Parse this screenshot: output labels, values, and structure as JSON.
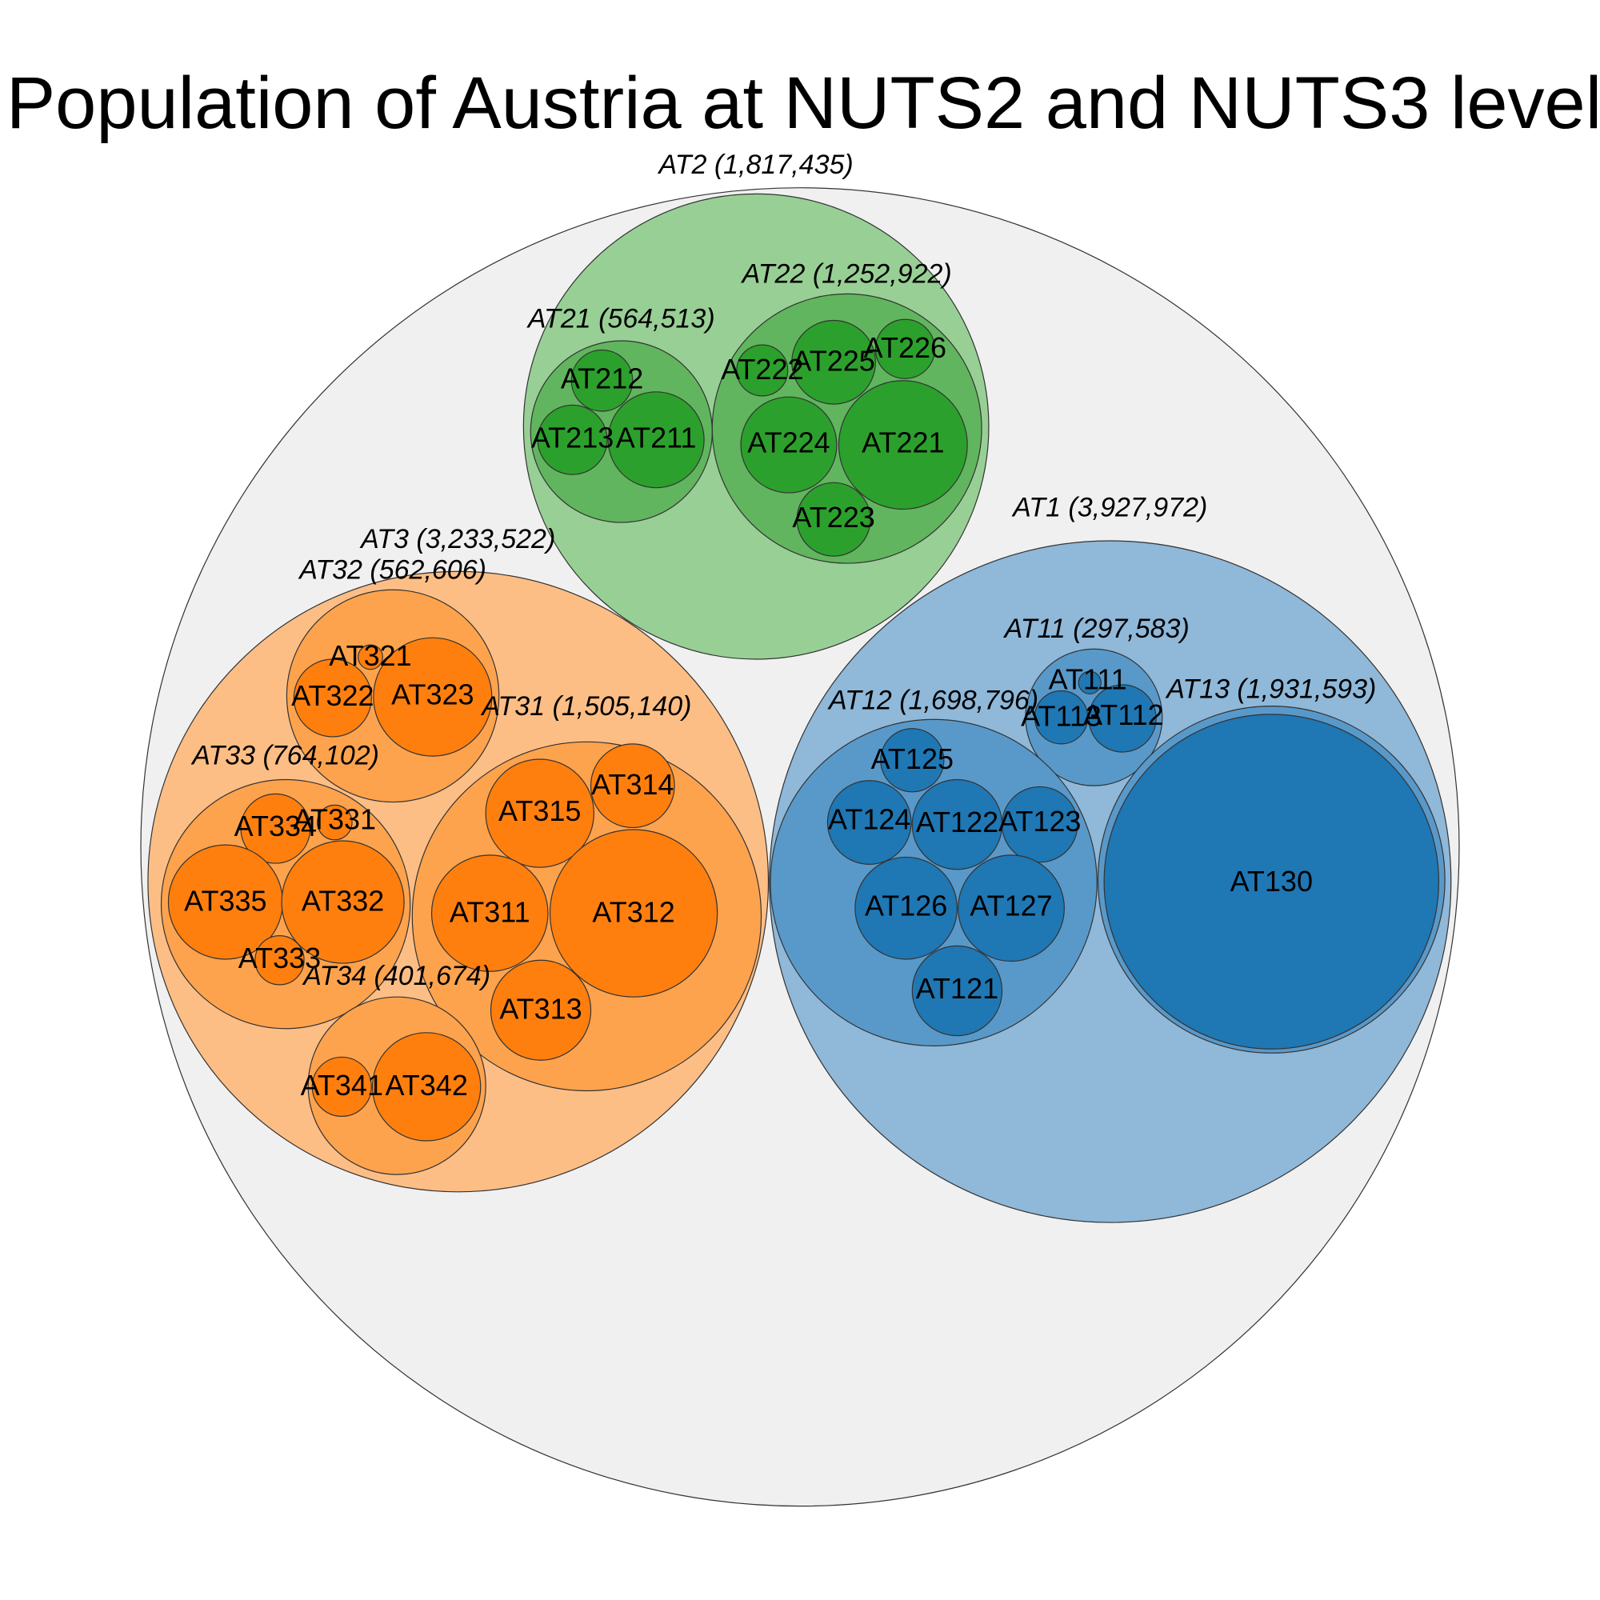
{
  "chart_data": {
    "type": "circle-packing",
    "title": "Population of Austria at NUTS2 and NUTS3 level",
    "colors": {
      "root": "#f0f0f0",
      "AT1": [
        "#8fb8d9",
        "#5999c9",
        "#1f77b4"
      ],
      "AT2": [
        "#98cf95",
        "#61b55e",
        "#2ca02c"
      ],
      "AT3": [
        "#fdbe86",
        "#fea34d",
        "#ff7f0e"
      ]
    },
    "nuts1": [
      {
        "id": "AT1",
        "label": "AT1 (3,927,972)",
        "value": 3927972,
        "nuts2": [
          {
            "id": "AT11",
            "label": "AT11 (297,583)",
            "value": 297583,
            "nuts3": [
              "AT111",
              "AT113",
              "AT112"
            ]
          },
          {
            "id": "AT12",
            "label": "AT12 (1,698,796)",
            "value": 1698796,
            "nuts3": [
              "AT125",
              "AT124",
              "AT122",
              "AT123",
              "AT126",
              "AT127",
              "AT121"
            ]
          },
          {
            "id": "AT13",
            "label": "AT13 (1,931,593)",
            "value": 1931593,
            "nuts3": [
              "AT130"
            ]
          }
        ]
      },
      {
        "id": "AT2",
        "label": "AT2 (1,817,435)",
        "value": 1817435,
        "nuts2": [
          {
            "id": "AT21",
            "label": "AT21 (564,513)",
            "value": 564513,
            "nuts3": [
              "AT212",
              "AT213",
              "AT211"
            ]
          },
          {
            "id": "AT22",
            "label": "AT22 (1,252,922)",
            "value": 1252922,
            "nuts3": [
              "AT222",
              "AT225",
              "AT226",
              "AT224",
              "AT221",
              "AT223"
            ]
          }
        ]
      },
      {
        "id": "AT3",
        "label": "AT3 (3,233,522)",
        "value": 3233522,
        "nuts2": [
          {
            "id": "AT31",
            "label": "AT31 (1,505,140)",
            "value": 1505140,
            "nuts3": [
              "AT314",
              "AT315",
              "AT311",
              "AT312",
              "AT313"
            ]
          },
          {
            "id": "AT32",
            "label": "AT32 (562,606)",
            "value": 562606,
            "nuts3": [
              "AT321",
              "AT322",
              "AT323"
            ]
          },
          {
            "id": "AT33",
            "label": "AT33 (764,102)",
            "value": 764102,
            "nuts3": [
              "AT334",
              "AT331",
              "AT335",
              "AT332",
              "AT333"
            ]
          },
          {
            "id": "AT34",
            "label": "AT34 (401,674)",
            "value": 401674,
            "nuts3": [
              "AT341",
              "AT342"
            ]
          }
        ]
      }
    ]
  }
}
